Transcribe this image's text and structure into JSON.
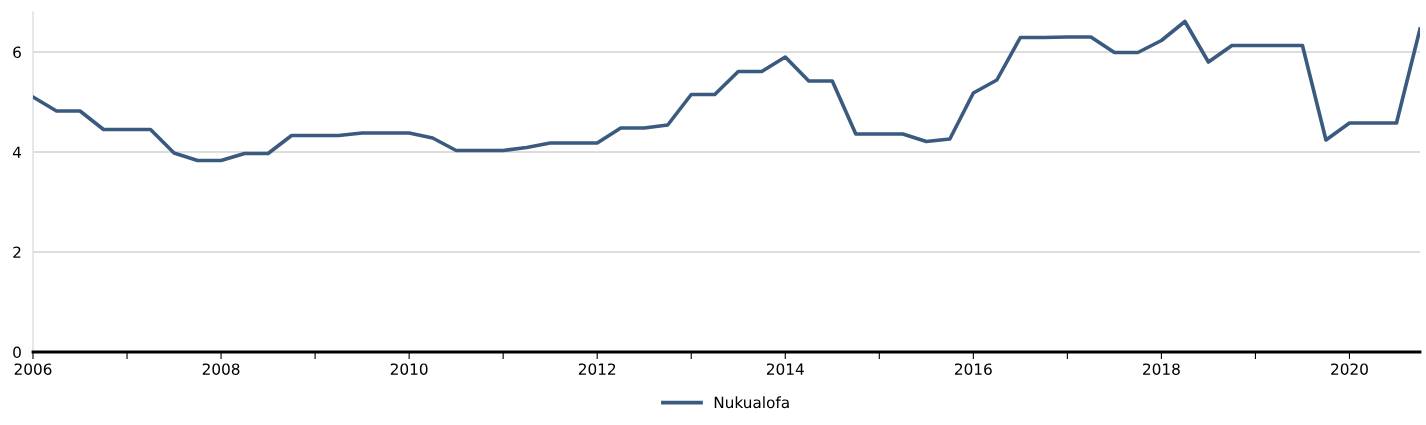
{
  "chart_data": {
    "type": "line",
    "x": [
      2006.0,
      2006.25,
      2006.5,
      2006.75,
      2007.0,
      2007.25,
      2007.5,
      2007.75,
      2008.0,
      2008.25,
      2008.5,
      2008.75,
      2009.0,
      2009.25,
      2009.5,
      2009.75,
      2010.0,
      2010.25,
      2010.5,
      2010.75,
      2011.0,
      2011.25,
      2011.5,
      2011.75,
      2012.0,
      2012.25,
      2012.5,
      2012.75,
      2013.0,
      2013.25,
      2013.5,
      2013.75,
      2014.0,
      2014.25,
      2014.5,
      2014.75,
      2015.0,
      2015.25,
      2015.5,
      2015.75,
      2016.0,
      2016.25,
      2016.5,
      2016.75,
      2017.0,
      2017.25,
      2017.5,
      2017.75,
      2018.0,
      2018.25,
      2018.5,
      2018.75,
      2019.0,
      2019.25,
      2019.5,
      2019.75,
      2020.0,
      2020.25,
      2020.5,
      2020.75
    ],
    "series": [
      {
        "name": "Nukualofa",
        "color": "#3b5a80",
        "values": [
          5.1,
          4.82,
          4.82,
          4.45,
          4.45,
          4.45,
          3.98,
          3.83,
          3.83,
          3.97,
          3.97,
          4.33,
          4.33,
          4.33,
          4.38,
          4.38,
          4.38,
          4.28,
          4.03,
          4.03,
          4.03,
          4.09,
          4.18,
          4.18,
          4.18,
          4.48,
          4.48,
          4.54,
          5.15,
          5.15,
          5.61,
          5.61,
          5.9,
          5.42,
          5.42,
          4.36,
          4.36,
          4.36,
          4.21,
          4.26,
          5.18,
          5.44,
          6.29,
          6.29,
          6.3,
          6.3,
          5.99,
          5.99,
          6.23,
          6.61,
          5.8,
          6.13,
          6.13,
          6.13,
          6.13,
          4.24,
          4.58,
          4.58,
          4.58,
          6.46
        ]
      }
    ],
    "xlim": [
      2006,
      2020.75
    ],
    "xticks": [
      2006,
      {
        "value": 2007,
        "label": null
      },
      2008,
      {
        "value": 2009,
        "label": null
      },
      2010,
      {
        "value": 2011,
        "label": null
      },
      2012,
      {
        "value": 2013,
        "label": null
      },
      2014,
      {
        "value": 2015,
        "label": null
      },
      2016,
      {
        "value": 2017,
        "label": null
      },
      2018,
      {
        "value": 2019,
        "label": null
      },
      2020
    ],
    "ylim": [
      0,
      6.8
    ],
    "yticks": [
      0,
      2,
      4,
      6
    ],
    "grid": "y",
    "legend": "bottom",
    "marker": "none",
    "line_style": "solid"
  }
}
